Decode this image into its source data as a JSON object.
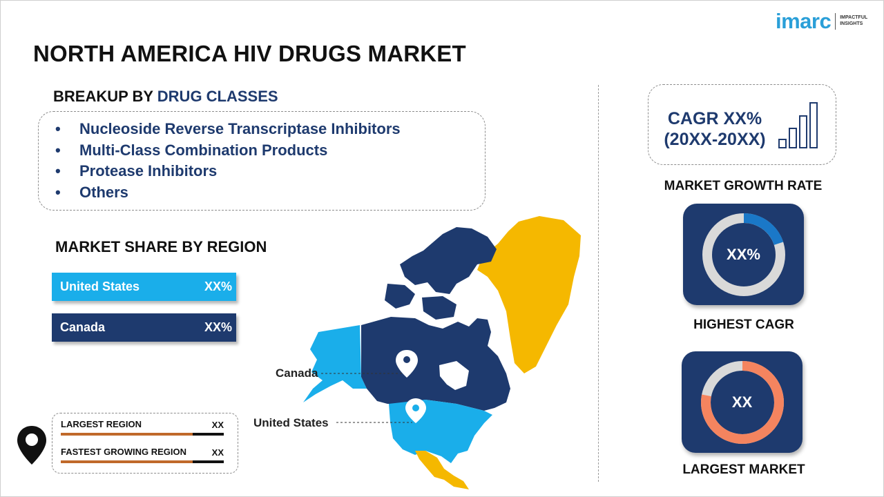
{
  "title": "NORTH AMERICA HIV DRUGS MARKET",
  "logo": {
    "word": "imarc",
    "tagline_1": "IMPACTFUL",
    "tagline_2": "INSIGHTS"
  },
  "breakup": {
    "label_prefix": "BREAKUP BY ",
    "label_accent": "DRUG CLASSES",
    "items": [
      "Nucleoside Reverse Transcriptase Inhibitors",
      "Multi-Class Combination Products",
      "Protease Inhibitors",
      "Others"
    ],
    "bullet": "•"
  },
  "market_share": {
    "title": "MARKET SHARE BY REGION",
    "regions": [
      {
        "name": "United States",
        "value": "XX%",
        "color": "#1aaeea"
      },
      {
        "name": "Canada",
        "value": "XX%",
        "color": "#1e3a6e"
      }
    ]
  },
  "legend": {
    "largest": {
      "label": "LARGEST REGION",
      "value": "XX",
      "fill_fraction": 0.81,
      "color": "#c0692a"
    },
    "fastest": {
      "label": "FASTEST GROWING REGION",
      "value": "XX",
      "fill_fraction": 0.81,
      "color": "#c0692a"
    }
  },
  "map": {
    "label_canada": "Canada",
    "label_us": "United States",
    "colors": {
      "canada": "#1e3a6e",
      "us": "#1aaeea",
      "greenland": "#f5b800",
      "mexico": "#f5b800"
    }
  },
  "cagr": {
    "line1": "CAGR XX%",
    "line2": "(20XX-20XX)",
    "caption": "MARKET GROWTH RATE"
  },
  "highest_cagr": {
    "value": "XX%",
    "caption": "HIGHEST CAGR",
    "fill_fraction": 0.2,
    "color": "#1a78c8"
  },
  "largest_market": {
    "value": "XX",
    "caption": "LARGEST MARKET",
    "fill_fraction": 0.78,
    "color": "#f4845f"
  },
  "colors": {
    "navy": "#1e3a6e",
    "sky": "#1aaeea",
    "orange": "#c0692a",
    "yellow": "#f5b800"
  }
}
